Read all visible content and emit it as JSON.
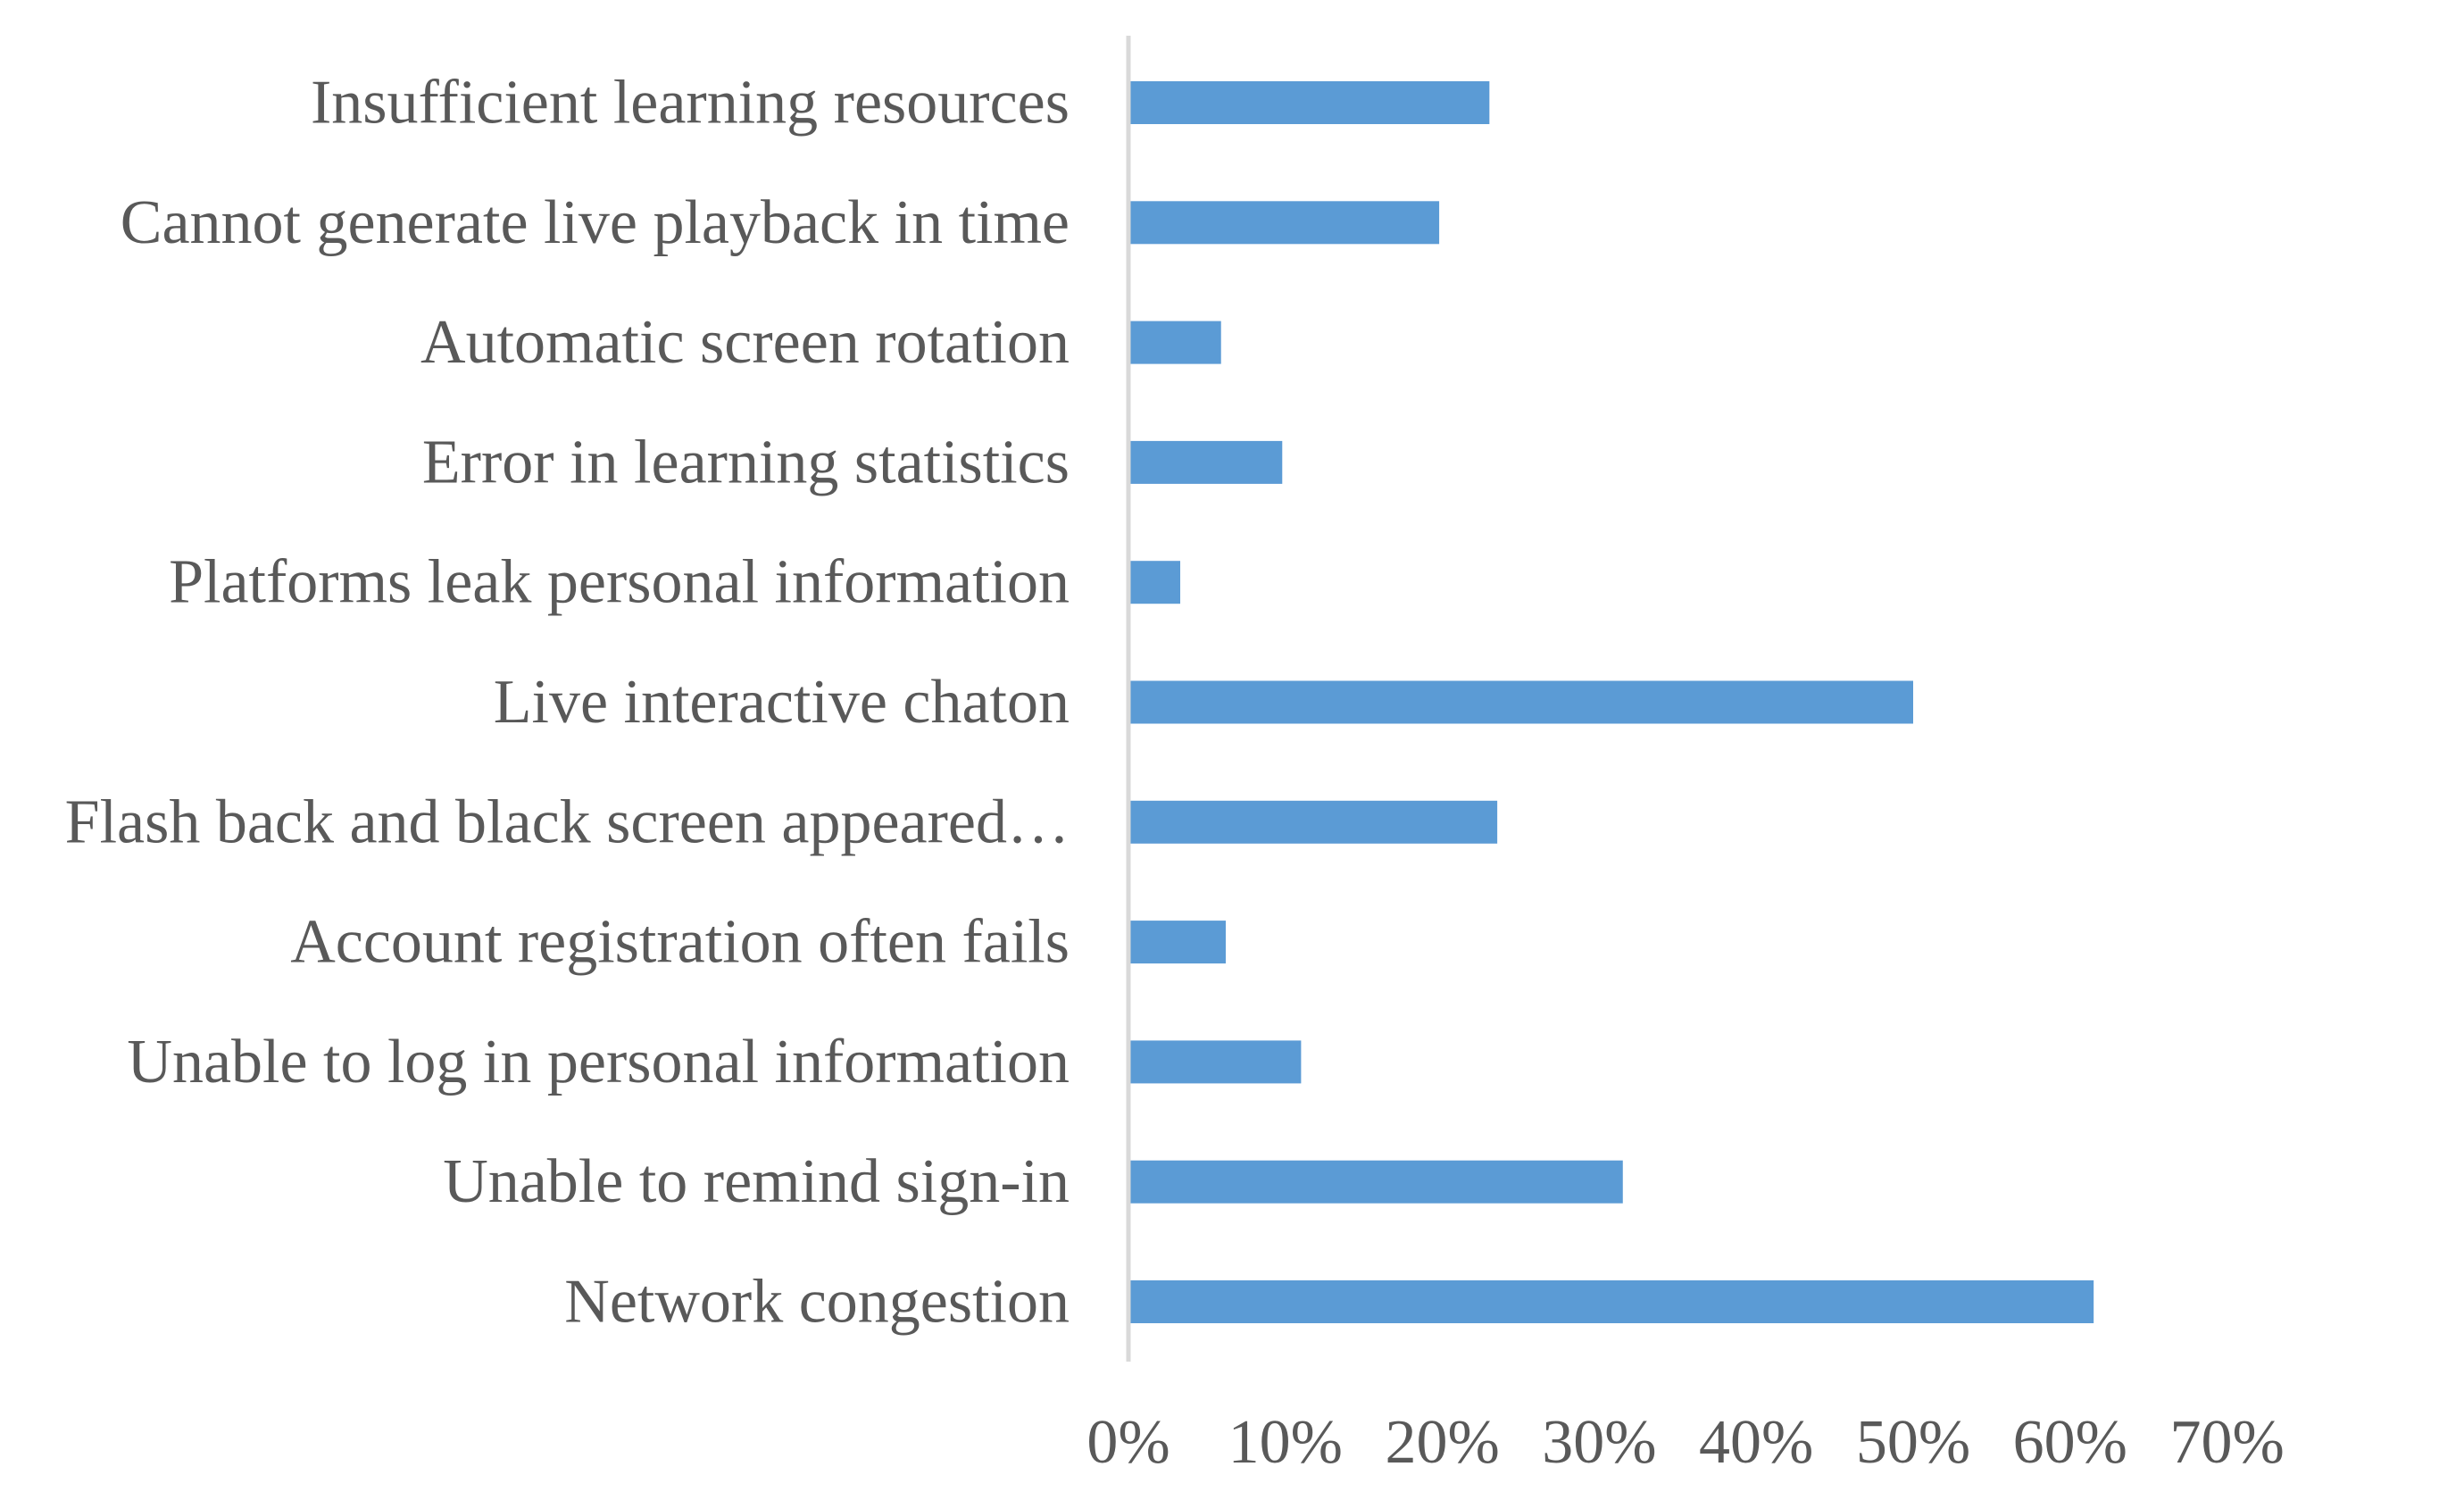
{
  "chart_data": {
    "type": "bar",
    "orientation": "horizontal",
    "title": "",
    "xlabel": "",
    "ylabel": "",
    "categories": [
      "Network congestion",
      "Unable to remind sign-in",
      "Unable to log in personal information",
      "Account registration often fails",
      "Flash back and black screen appeared…",
      "Live interactive chaton",
      "Platforms leak personal information",
      "Error in learning statistics",
      "Automatic screen rotation",
      "Cannot generate live playback in time",
      "Insufficient learning resources"
    ],
    "values": [
      61.5,
      31.5,
      11,
      6.2,
      23.5,
      50,
      3.3,
      9.8,
      5.9,
      19.8,
      23
    ],
    "value_unit": "%",
    "xlim": [
      0,
      70
    ],
    "x_ticks": [
      "0%",
      "10%",
      "20%",
      "30%",
      "40%",
      "50%",
      "60%",
      "70%"
    ],
    "grid": false,
    "legend": "none",
    "colors": {
      "bar": "#5b9bd5",
      "axis": "#d9d9d9",
      "text": "#595959"
    }
  }
}
